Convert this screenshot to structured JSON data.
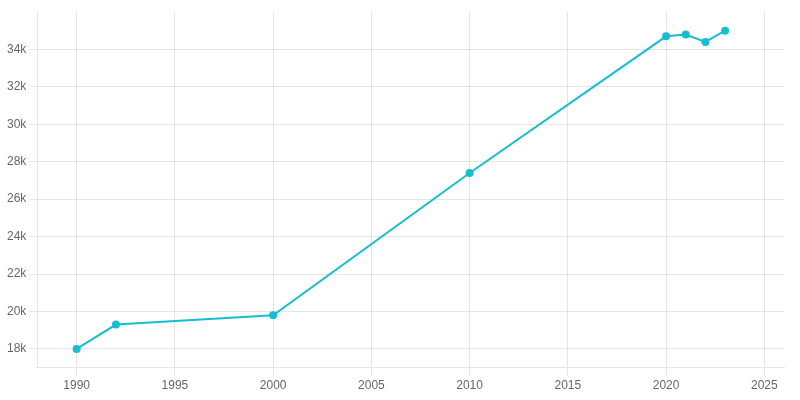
{
  "chart_data": {
    "type": "line",
    "x": [
      1990,
      1992,
      2000,
      2010,
      2020,
      2021,
      2022,
      2023
    ],
    "values": [
      18000,
      19300,
      19800,
      27400,
      34700,
      34800,
      34400,
      35000
    ],
    "color": "#17BECF",
    "marker": "circle",
    "xlim": [
      1988,
      2026
    ],
    "xticks": [
      1990,
      1995,
      2000,
      2005,
      2010,
      2015,
      2020,
      2025
    ],
    "ylim": [
      17000,
      36000
    ],
    "yticks": [
      {
        "value": 18000,
        "label": "18k"
      },
      {
        "value": 20000,
        "label": "20k"
      },
      {
        "value": 22000,
        "label": "22k"
      },
      {
        "value": 24000,
        "label": "24k"
      },
      {
        "value": 26000,
        "label": "26k"
      },
      {
        "value": 28000,
        "label": "28k"
      },
      {
        "value": 30000,
        "label": "30k"
      },
      {
        "value": 32000,
        "label": "32k"
      },
      {
        "value": 34000,
        "label": "34k"
      }
    ],
    "grid": true
  }
}
